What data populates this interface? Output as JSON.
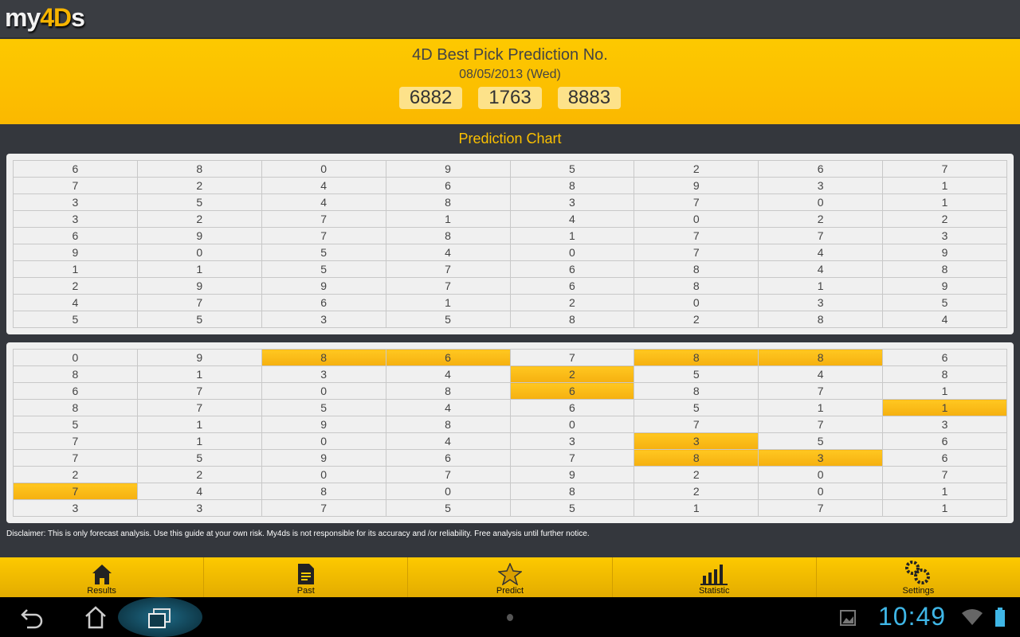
{
  "app": {
    "logo": "my4Ds",
    "logo_parts": [
      "my",
      "4D",
      "s"
    ]
  },
  "header": {
    "title": "4D Best Pick Prediction No.",
    "date": "08/05/2013 (Wed)",
    "numbers": [
      "6882",
      "1763",
      "8883"
    ]
  },
  "chart_title": "Prediction Chart",
  "table1": [
    [
      "6",
      "8",
      "0",
      "9",
      "5",
      "2",
      "6",
      "7"
    ],
    [
      "7",
      "2",
      "4",
      "6",
      "8",
      "9",
      "3",
      "1"
    ],
    [
      "3",
      "5",
      "4",
      "8",
      "3",
      "7",
      "0",
      "1"
    ],
    [
      "3",
      "2",
      "7",
      "1",
      "4",
      "0",
      "2",
      "2"
    ],
    [
      "6",
      "9",
      "7",
      "8",
      "1",
      "7",
      "7",
      "3"
    ],
    [
      "9",
      "0",
      "5",
      "4",
      "0",
      "7",
      "4",
      "9"
    ],
    [
      "1",
      "1",
      "5",
      "7",
      "6",
      "8",
      "4",
      "8"
    ],
    [
      "2",
      "9",
      "9",
      "7",
      "6",
      "8",
      "1",
      "9"
    ],
    [
      "4",
      "7",
      "6",
      "1",
      "2",
      "0",
      "3",
      "5"
    ],
    [
      "5",
      "5",
      "3",
      "5",
      "8",
      "2",
      "8",
      "4"
    ]
  ],
  "table2": [
    [
      "0",
      "9",
      "8",
      "6",
      "7",
      "8",
      "8",
      "6"
    ],
    [
      "8",
      "1",
      "3",
      "4",
      "2",
      "5",
      "4",
      "8"
    ],
    [
      "6",
      "7",
      "0",
      "8",
      "6",
      "8",
      "7",
      "1"
    ],
    [
      "8",
      "7",
      "5",
      "4",
      "6",
      "5",
      "1",
      "1"
    ],
    [
      "5",
      "1",
      "9",
      "8",
      "0",
      "7",
      "7",
      "3"
    ],
    [
      "7",
      "1",
      "0",
      "4",
      "3",
      "3",
      "5",
      "6"
    ],
    [
      "7",
      "5",
      "9",
      "6",
      "7",
      "8",
      "3",
      "6"
    ],
    [
      "2",
      "2",
      "0",
      "7",
      "9",
      "2",
      "0",
      "7"
    ],
    [
      "7",
      "4",
      "8",
      "0",
      "8",
      "2",
      "0",
      "1"
    ],
    [
      "3",
      "3",
      "7",
      "5",
      "5",
      "1",
      "7",
      "1"
    ]
  ],
  "table2_highlights": [
    [
      0,
      2
    ],
    [
      0,
      3
    ],
    [
      0,
      5
    ],
    [
      0,
      6
    ],
    [
      1,
      4
    ],
    [
      2,
      4
    ],
    [
      3,
      7
    ],
    [
      5,
      5
    ],
    [
      6,
      5
    ],
    [
      6,
      6
    ],
    [
      8,
      0
    ]
  ],
  "highlight_color": "#fbbd14",
  "disclaimer": "Disclaimer: This is only forecast analysis. Use this guide at your own risk. My4ds is not responsible for its accuracy and /or reliability. Free analysis until further notice.",
  "nav": [
    {
      "label": "Results",
      "icon": "home-icon"
    },
    {
      "label": "Past",
      "icon": "document-icon"
    },
    {
      "label": "Predict",
      "icon": "star-icon"
    },
    {
      "label": "Statistic",
      "icon": "bar-chart-icon"
    },
    {
      "label": "Settings",
      "icon": "gears-icon"
    }
  ],
  "system": {
    "time": "10:49"
  }
}
